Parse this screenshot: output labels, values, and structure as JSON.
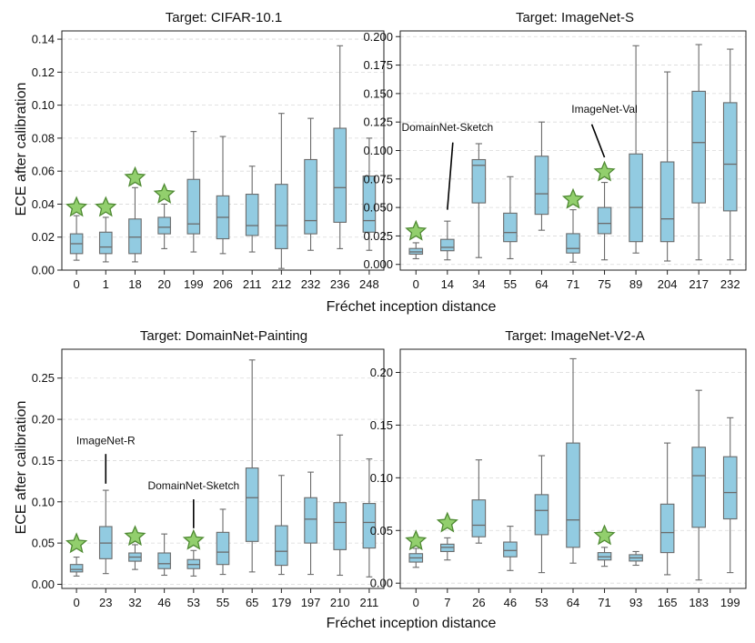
{
  "figure": {
    "x_axis_label": "Fréchet inception distance",
    "y_axis_label": "ECE after calibration"
  },
  "chart_data": [
    {
      "type": "box",
      "title": "Target: CIFAR-10.1",
      "xlabel": "",
      "ylabel": "ECE after calibration",
      "ylim": [
        0,
        0.145
      ],
      "yticks": [
        0.0,
        0.02,
        0.04,
        0.06,
        0.08,
        0.1,
        0.12,
        0.14
      ],
      "ytick_labels": [
        "0.00",
        "0.02",
        "0.04",
        "0.06",
        "0.08",
        "0.10",
        "0.12",
        "0.14"
      ],
      "grid": true,
      "categories": [
        "0",
        "1",
        "18",
        "20",
        "199",
        "206",
        "211",
        "212",
        "232",
        "236",
        "248"
      ],
      "boxes": [
        {
          "whislo": 0.006,
          "q1": 0.01,
          "med": 0.016,
          "q3": 0.022,
          "whishi": 0.033
        },
        {
          "whislo": 0.005,
          "q1": 0.01,
          "med": 0.014,
          "q3": 0.023,
          "whishi": 0.032
        },
        {
          "whislo": 0.005,
          "q1": 0.01,
          "med": 0.02,
          "q3": 0.031,
          "whishi": 0.05
        },
        {
          "whislo": 0.013,
          "q1": 0.022,
          "med": 0.026,
          "q3": 0.032,
          "whishi": 0.04
        },
        {
          "whislo": 0.011,
          "q1": 0.022,
          "med": 0.028,
          "q3": 0.055,
          "whishi": 0.084
        },
        {
          "whislo": 0.01,
          "q1": 0.019,
          "med": 0.032,
          "q3": 0.045,
          "whishi": 0.081
        },
        {
          "whislo": 0.011,
          "q1": 0.021,
          "med": 0.027,
          "q3": 0.046,
          "whishi": 0.063
        },
        {
          "whislo": 0.001,
          "q1": 0.013,
          "med": 0.027,
          "q3": 0.052,
          "whishi": 0.095
        },
        {
          "whislo": 0.012,
          "q1": 0.022,
          "med": 0.03,
          "q3": 0.067,
          "whishi": 0.092
        },
        {
          "whislo": 0.013,
          "q1": 0.029,
          "med": 0.05,
          "q3": 0.086,
          "whishi": 0.136
        },
        {
          "whislo": 0.012,
          "q1": 0.023,
          "med": 0.03,
          "q3": 0.057,
          "whishi": 0.08
        }
      ],
      "stars": [
        {
          "category": "0",
          "value": 0.038
        },
        {
          "category": "1",
          "value": 0.038
        },
        {
          "category": "18",
          "value": 0.056
        },
        {
          "category": "20",
          "value": 0.046
        }
      ],
      "annotations": []
    },
    {
      "type": "box",
      "title": "Target: ImageNet-S",
      "xlabel": "Fréchet inception distance",
      "ylabel": "",
      "ylim": [
        -0.005,
        0.205
      ],
      "yticks": [
        0.0,
        0.025,
        0.05,
        0.075,
        0.1,
        0.125,
        0.15,
        0.175,
        0.2
      ],
      "ytick_labels": [
        "0.000",
        "0.025",
        "0.050",
        "0.075",
        "0.100",
        "0.125",
        "0.150",
        "0.175",
        "0.200"
      ],
      "grid": true,
      "categories": [
        "0",
        "14",
        "34",
        "55",
        "64",
        "71",
        "75",
        "89",
        "204",
        "217",
        "232"
      ],
      "boxes": [
        {
          "whislo": 0.005,
          "q1": 0.009,
          "med": 0.011,
          "q3": 0.014,
          "whishi": 0.019
        },
        {
          "whislo": 0.004,
          "q1": 0.012,
          "med": 0.015,
          "q3": 0.022,
          "whishi": 0.038
        },
        {
          "whislo": 0.006,
          "q1": 0.054,
          "med": 0.087,
          "q3": 0.092,
          "whishi": 0.106
        },
        {
          "whislo": 0.005,
          "q1": 0.02,
          "med": 0.028,
          "q3": 0.045,
          "whishi": 0.077
        },
        {
          "whislo": 0.03,
          "q1": 0.044,
          "med": 0.062,
          "q3": 0.095,
          "whishi": 0.125
        },
        {
          "whislo": 0.002,
          "q1": 0.01,
          "med": 0.014,
          "q3": 0.027,
          "whishi": 0.048
        },
        {
          "whislo": 0.004,
          "q1": 0.027,
          "med": 0.036,
          "q3": 0.05,
          "whishi": 0.072
        },
        {
          "whislo": 0.01,
          "q1": 0.02,
          "med": 0.05,
          "q3": 0.097,
          "whishi": 0.192
        },
        {
          "whislo": 0.003,
          "q1": 0.02,
          "med": 0.04,
          "q3": 0.09,
          "whishi": 0.169
        },
        {
          "whislo": 0.004,
          "q1": 0.054,
          "med": 0.107,
          "q3": 0.152,
          "whishi": 0.193
        },
        {
          "whislo": 0.004,
          "q1": 0.047,
          "med": 0.088,
          "q3": 0.142,
          "whishi": 0.189
        }
      ],
      "stars": [
        {
          "category": "0",
          "value": 0.029
        },
        {
          "category": "71",
          "value": 0.057
        },
        {
          "category": "75",
          "value": 0.081
        }
      ],
      "annotations": [
        {
          "text": "DomainNet-Sketch",
          "category": "14",
          "text_y": 0.117,
          "line_from": 0.107,
          "line_to": 0.048
        },
        {
          "text": "ImageNet-Val",
          "category": "75",
          "text_y": 0.133,
          "line_from": 0.123,
          "line_to": 0.094
        }
      ]
    },
    {
      "type": "box",
      "title": "Target: DomainNet-Painting",
      "xlabel": "",
      "ylabel": "ECE after calibration",
      "ylim": [
        -0.005,
        0.285
      ],
      "yticks": [
        0.0,
        0.05,
        0.1,
        0.15,
        0.2,
        0.25
      ],
      "ytick_labels": [
        "0.00",
        "0.05",
        "0.10",
        "0.15",
        "0.20",
        "0.25"
      ],
      "grid": true,
      "categories": [
        "0",
        "23",
        "32",
        "46",
        "53",
        "55",
        "65",
        "179",
        "197",
        "210",
        "211"
      ],
      "boxes": [
        {
          "whislo": 0.01,
          "q1": 0.015,
          "med": 0.018,
          "q3": 0.024,
          "whishi": 0.033
        },
        {
          "whislo": 0.013,
          "q1": 0.031,
          "med": 0.05,
          "q3": 0.07,
          "whishi": 0.114
        },
        {
          "whislo": 0.018,
          "q1": 0.028,
          "med": 0.033,
          "q3": 0.038,
          "whishi": 0.048
        },
        {
          "whislo": 0.011,
          "q1": 0.019,
          "med": 0.025,
          "q3": 0.038,
          "whishi": 0.061
        },
        {
          "whislo": 0.01,
          "q1": 0.019,
          "med": 0.024,
          "q3": 0.03,
          "whishi": 0.041
        },
        {
          "whislo": 0.012,
          "q1": 0.024,
          "med": 0.039,
          "q3": 0.063,
          "whishi": 0.091
        },
        {
          "whislo": 0.015,
          "q1": 0.052,
          "med": 0.105,
          "q3": 0.141,
          "whishi": 0.272
        },
        {
          "whislo": 0.012,
          "q1": 0.023,
          "med": 0.04,
          "q3": 0.071,
          "whishi": 0.132
        },
        {
          "whislo": 0.012,
          "q1": 0.05,
          "med": 0.079,
          "q3": 0.105,
          "whishi": 0.136
        },
        {
          "whislo": 0.011,
          "q1": 0.042,
          "med": 0.075,
          "q3": 0.099,
          "whishi": 0.181
        },
        {
          "whislo": 0.009,
          "q1": 0.044,
          "med": 0.075,
          "q3": 0.098,
          "whishi": 0.152
        }
      ],
      "stars": [
        {
          "category": "0",
          "value": 0.049
        },
        {
          "category": "32",
          "value": 0.058
        },
        {
          "category": "53",
          "value": 0.053
        }
      ],
      "annotations": [
        {
          "text": "ImageNet-R",
          "category": "23",
          "text_y": 0.17,
          "line_from": 0.158,
          "line_to": 0.122
        },
        {
          "text": "DomainNet-Sketch",
          "category": "53",
          "text_y": 0.115,
          "line_from": 0.103,
          "line_to": 0.068
        }
      ]
    },
    {
      "type": "box",
      "title": "Target: ImageNet-V2-A",
      "xlabel": "Fréchet inception distance",
      "ylabel": "",
      "ylim": [
        -0.005,
        0.222
      ],
      "yticks": [
        0.0,
        0.05,
        0.1,
        0.15,
        0.2
      ],
      "ytick_labels": [
        "0.00",
        "0.05",
        "0.10",
        "0.15",
        "0.20"
      ],
      "grid": true,
      "categories": [
        "0",
        "7",
        "26",
        "46",
        "53",
        "64",
        "71",
        "93",
        "165",
        "183",
        "199"
      ],
      "boxes": [
        {
          "whislo": 0.015,
          "q1": 0.02,
          "med": 0.024,
          "q3": 0.028,
          "whishi": 0.033
        },
        {
          "whislo": 0.022,
          "q1": 0.03,
          "med": 0.034,
          "q3": 0.037,
          "whishi": 0.043
        },
        {
          "whislo": 0.038,
          "q1": 0.044,
          "med": 0.055,
          "q3": 0.079,
          "whishi": 0.117
        },
        {
          "whislo": 0.012,
          "q1": 0.025,
          "med": 0.031,
          "q3": 0.039,
          "whishi": 0.054
        },
        {
          "whislo": 0.01,
          "q1": 0.046,
          "med": 0.069,
          "q3": 0.084,
          "whishi": 0.121
        },
        {
          "whislo": 0.019,
          "q1": 0.034,
          "med": 0.06,
          "q3": 0.133,
          "whishi": 0.213
        },
        {
          "whislo": 0.016,
          "q1": 0.022,
          "med": 0.025,
          "q3": 0.029,
          "whishi": 0.034
        },
        {
          "whislo": 0.017,
          "q1": 0.021,
          "med": 0.024,
          "q3": 0.027,
          "whishi": 0.03
        },
        {
          "whislo": 0.008,
          "q1": 0.029,
          "med": 0.048,
          "q3": 0.075,
          "whishi": 0.133
        },
        {
          "whislo": 0.003,
          "q1": 0.053,
          "med": 0.102,
          "q3": 0.129,
          "whishi": 0.183
        },
        {
          "whislo": 0.01,
          "q1": 0.061,
          "med": 0.086,
          "q3": 0.12,
          "whishi": 0.157
        }
      ],
      "stars": [
        {
          "category": "0",
          "value": 0.04
        },
        {
          "category": "7",
          "value": 0.057
        },
        {
          "category": "71",
          "value": 0.045
        }
      ],
      "annotations": []
    }
  ]
}
